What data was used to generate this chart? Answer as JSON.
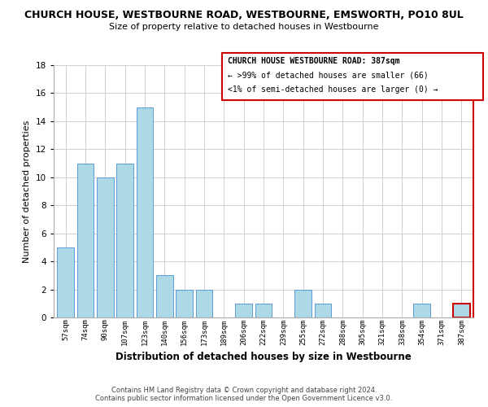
{
  "title": "CHURCH HOUSE, WESTBOURNE ROAD, WESTBOURNE, EMSWORTH, PO10 8UL",
  "subtitle": "Size of property relative to detached houses in Westbourne",
  "xlabel": "Distribution of detached houses by size in Westbourne",
  "ylabel": "Number of detached properties",
  "bar_labels": [
    "57sqm",
    "74sqm",
    "90sqm",
    "107sqm",
    "123sqm",
    "140sqm",
    "156sqm",
    "173sqm",
    "189sqm",
    "206sqm",
    "222sqm",
    "239sqm",
    "255sqm",
    "272sqm",
    "288sqm",
    "305sqm",
    "321sqm",
    "338sqm",
    "354sqm",
    "371sqm",
    "387sqm"
  ],
  "bar_values": [
    5,
    11,
    10,
    11,
    15,
    3,
    2,
    2,
    0,
    1,
    1,
    0,
    2,
    1,
    0,
    0,
    0,
    0,
    1,
    0,
    1
  ],
  "bar_color": "#add8e6",
  "bar_edge_color": "#5b9bd5",
  "highlight_index": 20,
  "highlight_bar_edge_color": "#cc0000",
  "ylim": [
    0,
    18
  ],
  "yticks": [
    0,
    2,
    4,
    6,
    8,
    10,
    12,
    14,
    16,
    18
  ],
  "legend_title": "CHURCH HOUSE WESTBOURNE ROAD: 387sqm",
  "legend_line1": "← >99% of detached houses are smaller (66)",
  "legend_line2": "<1% of semi-detached houses are larger (0) →",
  "footer_line1": "Contains HM Land Registry data © Crown copyright and database right 2024.",
  "footer_line2": "Contains public sector information licensed under the Open Government Licence v3.0.",
  "background_color": "#ffffff",
  "grid_color": "#d0d0d0",
  "right_border_color": "#cc0000"
}
